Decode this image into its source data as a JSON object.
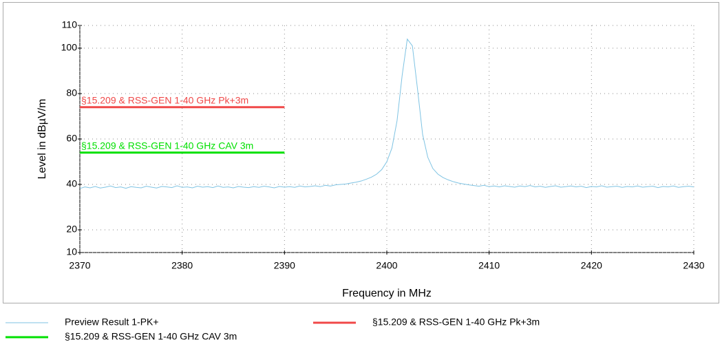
{
  "chart_data": {
    "type": "line",
    "xlabel": "Frequency in MHz",
    "ylabel": "Level in dBµV/m",
    "xlim": [
      2370,
      2430
    ],
    "ylim": [
      10,
      110
    ],
    "xticks": [
      2370,
      2380,
      2390,
      2400,
      2410,
      2420,
      2430
    ],
    "yticks": [
      10,
      20,
      40,
      60,
      80,
      100,
      110
    ],
    "grid": true,
    "series": [
      {
        "name": "Preview Result 1-PK+",
        "color": "#7ec3e3",
        "x": [
          2370,
          2370.5,
          2371,
          2371.5,
          2372,
          2372.5,
          2373,
          2373.5,
          2374,
          2374.5,
          2375,
          2375.5,
          2376,
          2376.5,
          2377,
          2377.5,
          2378,
          2378.5,
          2379,
          2379.5,
          2380,
          2380.5,
          2381,
          2381.5,
          2382,
          2382.5,
          2383,
          2383.5,
          2384,
          2384.5,
          2385,
          2385.5,
          2386,
          2386.5,
          2387,
          2387.5,
          2388,
          2388.5,
          2389,
          2389.5,
          2390,
          2390.5,
          2391,
          2391.5,
          2392,
          2392.5,
          2393,
          2393.5,
          2394,
          2394.5,
          2395,
          2395.5,
          2396,
          2396.5,
          2397,
          2397.5,
          2398,
          2398.5,
          2399,
          2399.5,
          2400,
          2400.5,
          2401,
          2401.5,
          2402,
          2402.5,
          2403,
          2403.5,
          2404,
          2404.5,
          2405,
          2405.5,
          2406,
          2406.5,
          2407,
          2407.5,
          2408,
          2408.5,
          2409,
          2409.5,
          2410,
          2410.5,
          2411,
          2411.5,
          2412,
          2412.5,
          2413,
          2413.5,
          2414,
          2414.5,
          2415,
          2415.5,
          2416,
          2416.5,
          2417,
          2417.5,
          2418,
          2418.5,
          2419,
          2419.5,
          2420,
          2420.5,
          2421,
          2421.5,
          2422,
          2422.5,
          2423,
          2423.5,
          2424,
          2424.5,
          2425,
          2425.5,
          2426,
          2426.5,
          2427,
          2427.5,
          2428,
          2428.5,
          2429,
          2429.5,
          2430
        ],
        "values": [
          38.2,
          38.9,
          38.5,
          39.1,
          38.4,
          38.8,
          39.3,
          38.6,
          38.9,
          38.3,
          39.0,
          38.7,
          38.5,
          39.2,
          38.8,
          38.4,
          39.1,
          38.9,
          38.6,
          39.4,
          38.7,
          38.9,
          38.5,
          39.2,
          38.8,
          39.0,
          38.6,
          39.3,
          38.7,
          38.9,
          38.5,
          39.1,
          38.8,
          38.6,
          39.0,
          38.7,
          39.2,
          38.9,
          38.5,
          39.1,
          38.8,
          39.0,
          38.7,
          39.3,
          38.9,
          39.1,
          39.4,
          39.0,
          39.6,
          39.3,
          39.8,
          40.0,
          40.2,
          40.6,
          41.0,
          41.5,
          42.3,
          43.2,
          44.5,
          46.5,
          50,
          56,
          68,
          88,
          104,
          101,
          82,
          62,
          52,
          47,
          44.5,
          43,
          42,
          41.2,
          40.6,
          40.2,
          39.8,
          39.5,
          39.2,
          39.6,
          39.0,
          39.3,
          38.9,
          39.4,
          39.1,
          38.8,
          39.3,
          39.0,
          39.5,
          38.9,
          39.2,
          38.7,
          39.1,
          39.4,
          38.8,
          39.0,
          39.3,
          38.9,
          39.2,
          38.6,
          39.1,
          38.9,
          39.4,
          38.8,
          39.0,
          39.2,
          38.7,
          39.1,
          38.9,
          39.3,
          38.8,
          39.0,
          39.2,
          38.6,
          39.1,
          38.9,
          39.3,
          38.7,
          39.0,
          39.2,
          38.9
        ]
      },
      {
        "name": "§15.209 & RSS-GEN 1-40 GHz CAV 3m",
        "color": "#00e000",
        "x": [
          2370,
          2390
        ],
        "values": [
          54,
          54
        ]
      },
      {
        "name": "§15.209 & RSS-GEN 1-40 GHz Pk+3m",
        "color": "#f04848",
        "x": [
          2370,
          2390
        ],
        "values": [
          74,
          74
        ]
      }
    ]
  }
}
